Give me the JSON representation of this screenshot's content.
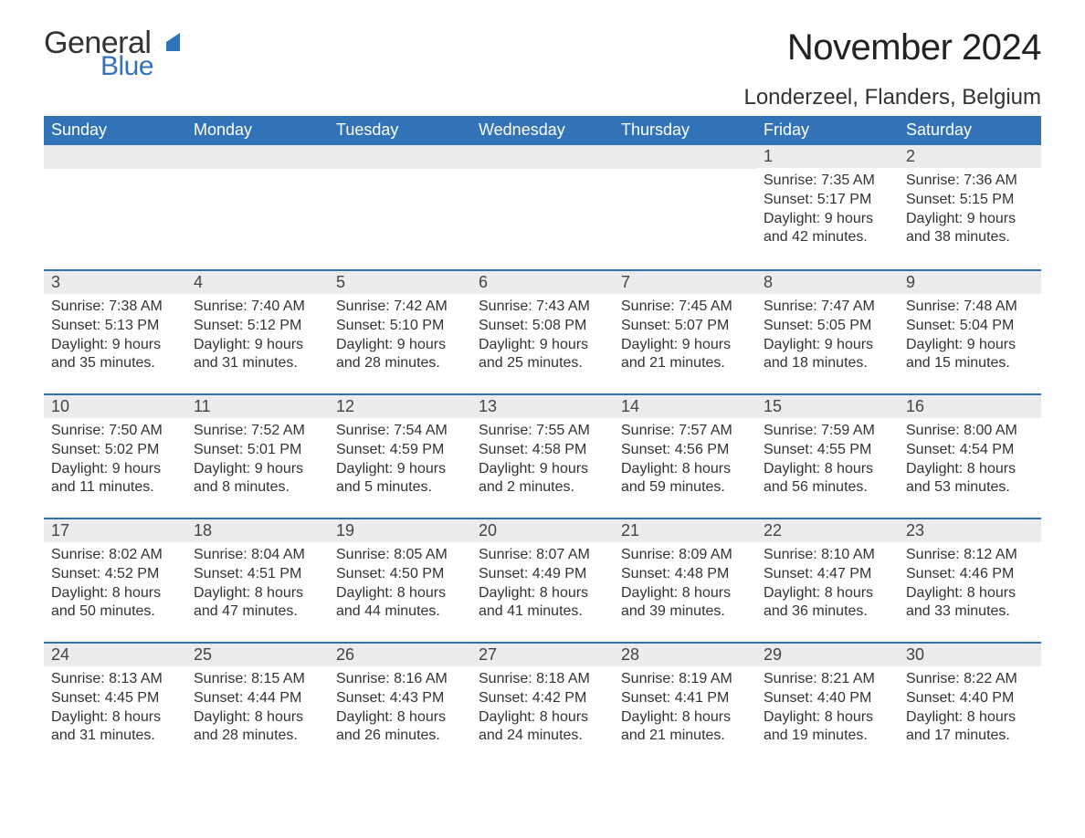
{
  "logo": {
    "text_general": "General",
    "text_blue": "Blue",
    "general_color": "#333333",
    "blue_color": "#3273b8",
    "triangle_color": "#3273b8"
  },
  "title": "November 2024",
  "location": "Londerzeel, Flanders, Belgium",
  "colors": {
    "header_bg": "#3273b8",
    "header_text": "#ffffff",
    "daynum_bg": "#ececec",
    "body_text": "#333333",
    "week_border": "#3273b8",
    "page_bg": "#ffffff"
  },
  "fonts": {
    "title_size_pt": 30,
    "location_size_pt": 18,
    "weekday_size_pt": 14,
    "body_size_pt": 12,
    "family": "Arial"
  },
  "weekdays": [
    "Sunday",
    "Monday",
    "Tuesday",
    "Wednesday",
    "Thursday",
    "Friday",
    "Saturday"
  ],
  "weeks": [
    [
      null,
      null,
      null,
      null,
      null,
      {
        "n": "1",
        "sunrise": "Sunrise: 7:35 AM",
        "sunset": "Sunset: 5:17 PM",
        "daylight": "Daylight: 9 hours and 42 minutes."
      },
      {
        "n": "2",
        "sunrise": "Sunrise: 7:36 AM",
        "sunset": "Sunset: 5:15 PM",
        "daylight": "Daylight: 9 hours and 38 minutes."
      }
    ],
    [
      {
        "n": "3",
        "sunrise": "Sunrise: 7:38 AM",
        "sunset": "Sunset: 5:13 PM",
        "daylight": "Daylight: 9 hours and 35 minutes."
      },
      {
        "n": "4",
        "sunrise": "Sunrise: 7:40 AM",
        "sunset": "Sunset: 5:12 PM",
        "daylight": "Daylight: 9 hours and 31 minutes."
      },
      {
        "n": "5",
        "sunrise": "Sunrise: 7:42 AM",
        "sunset": "Sunset: 5:10 PM",
        "daylight": "Daylight: 9 hours and 28 minutes."
      },
      {
        "n": "6",
        "sunrise": "Sunrise: 7:43 AM",
        "sunset": "Sunset: 5:08 PM",
        "daylight": "Daylight: 9 hours and 25 minutes."
      },
      {
        "n": "7",
        "sunrise": "Sunrise: 7:45 AM",
        "sunset": "Sunset: 5:07 PM",
        "daylight": "Daylight: 9 hours and 21 minutes."
      },
      {
        "n": "8",
        "sunrise": "Sunrise: 7:47 AM",
        "sunset": "Sunset: 5:05 PM",
        "daylight": "Daylight: 9 hours and 18 minutes."
      },
      {
        "n": "9",
        "sunrise": "Sunrise: 7:48 AM",
        "sunset": "Sunset: 5:04 PM",
        "daylight": "Daylight: 9 hours and 15 minutes."
      }
    ],
    [
      {
        "n": "10",
        "sunrise": "Sunrise: 7:50 AM",
        "sunset": "Sunset: 5:02 PM",
        "daylight": "Daylight: 9 hours and 11 minutes."
      },
      {
        "n": "11",
        "sunrise": "Sunrise: 7:52 AM",
        "sunset": "Sunset: 5:01 PM",
        "daylight": "Daylight: 9 hours and 8 minutes."
      },
      {
        "n": "12",
        "sunrise": "Sunrise: 7:54 AM",
        "sunset": "Sunset: 4:59 PM",
        "daylight": "Daylight: 9 hours and 5 minutes."
      },
      {
        "n": "13",
        "sunrise": "Sunrise: 7:55 AM",
        "sunset": "Sunset: 4:58 PM",
        "daylight": "Daylight: 9 hours and 2 minutes."
      },
      {
        "n": "14",
        "sunrise": "Sunrise: 7:57 AM",
        "sunset": "Sunset: 4:56 PM",
        "daylight": "Daylight: 8 hours and 59 minutes."
      },
      {
        "n": "15",
        "sunrise": "Sunrise: 7:59 AM",
        "sunset": "Sunset: 4:55 PM",
        "daylight": "Daylight: 8 hours and 56 minutes."
      },
      {
        "n": "16",
        "sunrise": "Sunrise: 8:00 AM",
        "sunset": "Sunset: 4:54 PM",
        "daylight": "Daylight: 8 hours and 53 minutes."
      }
    ],
    [
      {
        "n": "17",
        "sunrise": "Sunrise: 8:02 AM",
        "sunset": "Sunset: 4:52 PM",
        "daylight": "Daylight: 8 hours and 50 minutes."
      },
      {
        "n": "18",
        "sunrise": "Sunrise: 8:04 AM",
        "sunset": "Sunset: 4:51 PM",
        "daylight": "Daylight: 8 hours and 47 minutes."
      },
      {
        "n": "19",
        "sunrise": "Sunrise: 8:05 AM",
        "sunset": "Sunset: 4:50 PM",
        "daylight": "Daylight: 8 hours and 44 minutes."
      },
      {
        "n": "20",
        "sunrise": "Sunrise: 8:07 AM",
        "sunset": "Sunset: 4:49 PM",
        "daylight": "Daylight: 8 hours and 41 minutes."
      },
      {
        "n": "21",
        "sunrise": "Sunrise: 8:09 AM",
        "sunset": "Sunset: 4:48 PM",
        "daylight": "Daylight: 8 hours and 39 minutes."
      },
      {
        "n": "22",
        "sunrise": "Sunrise: 8:10 AM",
        "sunset": "Sunset: 4:47 PM",
        "daylight": "Daylight: 8 hours and 36 minutes."
      },
      {
        "n": "23",
        "sunrise": "Sunrise: 8:12 AM",
        "sunset": "Sunset: 4:46 PM",
        "daylight": "Daylight: 8 hours and 33 minutes."
      }
    ],
    [
      {
        "n": "24",
        "sunrise": "Sunrise: 8:13 AM",
        "sunset": "Sunset: 4:45 PM",
        "daylight": "Daylight: 8 hours and 31 minutes."
      },
      {
        "n": "25",
        "sunrise": "Sunrise: 8:15 AM",
        "sunset": "Sunset: 4:44 PM",
        "daylight": "Daylight: 8 hours and 28 minutes."
      },
      {
        "n": "26",
        "sunrise": "Sunrise: 8:16 AM",
        "sunset": "Sunset: 4:43 PM",
        "daylight": "Daylight: 8 hours and 26 minutes."
      },
      {
        "n": "27",
        "sunrise": "Sunrise: 8:18 AM",
        "sunset": "Sunset: 4:42 PM",
        "daylight": "Daylight: 8 hours and 24 minutes."
      },
      {
        "n": "28",
        "sunrise": "Sunrise: 8:19 AM",
        "sunset": "Sunset: 4:41 PM",
        "daylight": "Daylight: 8 hours and 21 minutes."
      },
      {
        "n": "29",
        "sunrise": "Sunrise: 8:21 AM",
        "sunset": "Sunset: 4:40 PM",
        "daylight": "Daylight: 8 hours and 19 minutes."
      },
      {
        "n": "30",
        "sunrise": "Sunrise: 8:22 AM",
        "sunset": "Sunset: 4:40 PM",
        "daylight": "Daylight: 8 hours and 17 minutes."
      }
    ]
  ]
}
